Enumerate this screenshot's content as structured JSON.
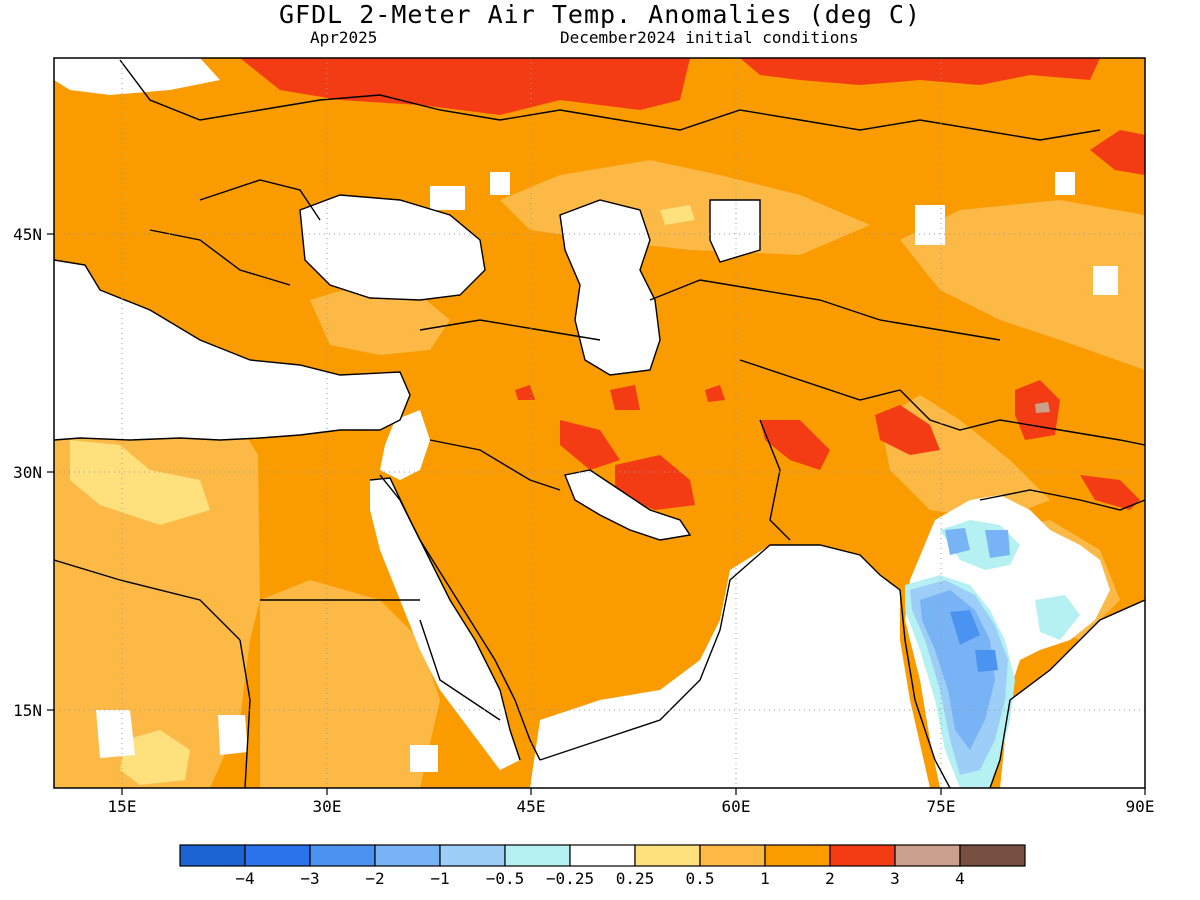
{
  "title": "GFDL 2-Meter Air Temp. Anomalies (deg C)",
  "subtitle_left": "Apr2025",
  "subtitle_right": "December2024 initial conditions",
  "map": {
    "projection": "lat-lon",
    "lon_range": [
      10,
      90
    ],
    "lat_range": [
      10,
      56
    ],
    "x_ticks": [
      "15E",
      "30E",
      "45E",
      "60E",
      "75E",
      "90E"
    ],
    "y_ticks": [
      "45N",
      "30N",
      "15N"
    ]
  },
  "colorbar": {
    "colors": [
      "#1c64d2",
      "#2b73ea",
      "#4a93f0",
      "#78b4f5",
      "#9ccef8",
      "#b5f0f2",
      "#ffffff",
      "#fee07c",
      "#fcb946",
      "#fa9b00",
      "#f33c14",
      "#c8a08c",
      "#785041"
    ],
    "labels": [
      "-4",
      "-3",
      "-2",
      "-1",
      "-0.5",
      "-0.25",
      "0.25",
      "0.5",
      "1",
      "2",
      "3",
      "4"
    ]
  }
}
